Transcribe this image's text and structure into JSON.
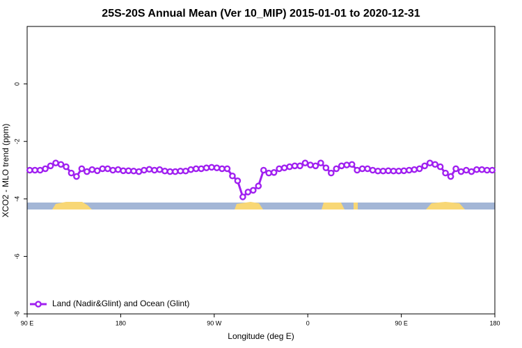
{
  "chart_data": {
    "type": "line",
    "title": "25S-20S Annual Mean (Ver 10_MIP)   2015-01-01 to 2020-12-31",
    "x_label": "Longitude (deg E)",
    "y_label": "XCO2 - MLO trend (ppm)",
    "xlim": [
      90,
      540
    ],
    "xticks": [
      {
        "value": 90,
        "label": "90 E"
      },
      180,
      {
        "value": 270,
        "label": "90 W"
      },
      {
        "value": 360,
        "label": "0"
      },
      {
        "value": 450,
        "label": "90 E"
      },
      {
        "value": 540,
        "label": "180"
      }
    ],
    "ylim": [
      -8,
      2
    ],
    "yticks": [
      0,
      -2,
      -4,
      -6,
      -8
    ],
    "legend_position": "lower left",
    "x": [
      92.5,
      97.5,
      102.5,
      107.5,
      112.5,
      117.5,
      122.5,
      127.5,
      132.5,
      137.5,
      142.5,
      147.5,
      152.5,
      157.5,
      162.5,
      167.5,
      172.5,
      177.5,
      182.5,
      187.5,
      192.5,
      197.5,
      202.5,
      207.5,
      212.5,
      217.5,
      222.5,
      227.5,
      232.5,
      237.5,
      242.5,
      247.5,
      252.5,
      257.5,
      262.5,
      267.5,
      272.5,
      277.5,
      282.5,
      287.5,
      292.5,
      297.5,
      302.5,
      307.5,
      312.5,
      317.5,
      322.5,
      327.5,
      332.5,
      337.5,
      342.5,
      347.5,
      352.5,
      357.5,
      362.5,
      367.5,
      372.5,
      377.5,
      382.5,
      387.5,
      392.5,
      397.5,
      402.5,
      407.5,
      412.5,
      417.5,
      422.5,
      427.5,
      432.5,
      437.5,
      442.5,
      447.5,
      452.5,
      457.5,
      462.5,
      467.5,
      472.5,
      477.5,
      482.5,
      487.5,
      492.5,
      497.5,
      502.5,
      507.5,
      512.5,
      517.5,
      522.5,
      527.5,
      532.5,
      537.5
    ],
    "series": [
      {
        "name": "Land (Nadir&Glint) and Ocean (Glint)",
        "color": "#a020f0",
        "values": [
          -3.0,
          -3.0,
          -3.0,
          -2.95,
          -2.85,
          -2.75,
          -2.8,
          -2.88,
          -3.1,
          -3.22,
          -2.95,
          -3.05,
          -2.98,
          -3.02,
          -2.95,
          -2.95,
          -3.0,
          -2.98,
          -3.02,
          -3.02,
          -3.03,
          -3.05,
          -3.0,
          -2.97,
          -3.0,
          -2.98,
          -3.03,
          -3.05,
          -3.05,
          -3.03,
          -3.03,
          -2.98,
          -2.95,
          -2.95,
          -2.92,
          -2.9,
          -2.92,
          -2.95,
          -2.95,
          -3.2,
          -3.37,
          -3.93,
          -3.76,
          -3.7,
          -3.55,
          -3.0,
          -3.1,
          -3.08,
          -2.95,
          -2.92,
          -2.88,
          -2.85,
          -2.85,
          -2.75,
          -2.82,
          -2.85,
          -2.75,
          -2.92,
          -3.1,
          -2.95,
          -2.85,
          -2.82,
          -2.8,
          -3.0,
          -2.95,
          -2.95,
          -3.0,
          -3.03,
          -3.03,
          -3.02,
          -3.03,
          -3.03,
          -3.02,
          -3.0,
          -2.98,
          -2.95,
          -2.85,
          -2.75,
          -2.8,
          -2.88,
          -3.1,
          -3.22,
          -2.95,
          -3.05,
          -3.0,
          -3.05,
          -2.98,
          -2.98,
          -3.0,
          -3.0
        ]
      }
    ]
  }
}
